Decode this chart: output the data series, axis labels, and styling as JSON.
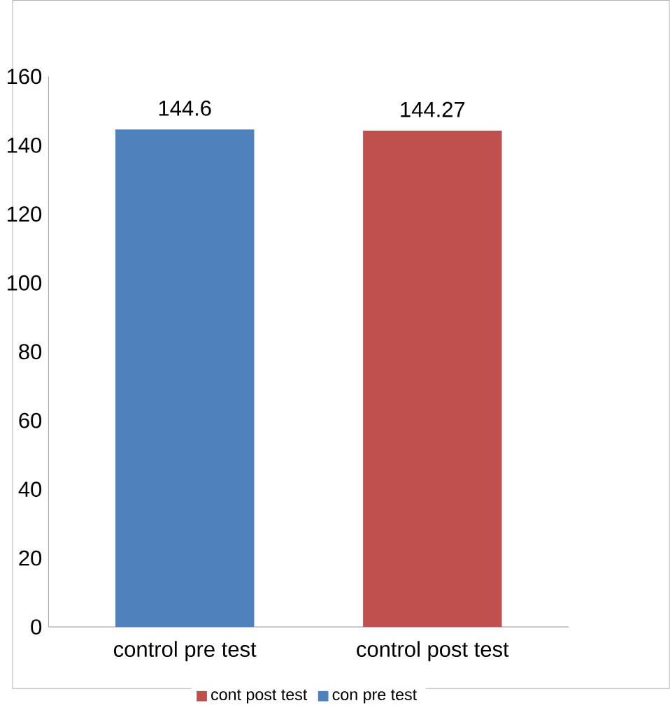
{
  "chart_data": {
    "type": "bar",
    "categories": [
      "control pre test",
      "control post test"
    ],
    "series": [
      {
        "name": "cont post test",
        "color": "#c0504d",
        "values": [
          null,
          144.27
        ]
      },
      {
        "name": "con pre test",
        "color": "#4f81bd",
        "values": [
          144.6,
          null
        ]
      }
    ],
    "ylim": [
      0,
      160
    ],
    "yticks": [
      0,
      20,
      40,
      60,
      80,
      100,
      120,
      140,
      160
    ],
    "data_labels": true,
    "legend": "bottom"
  }
}
